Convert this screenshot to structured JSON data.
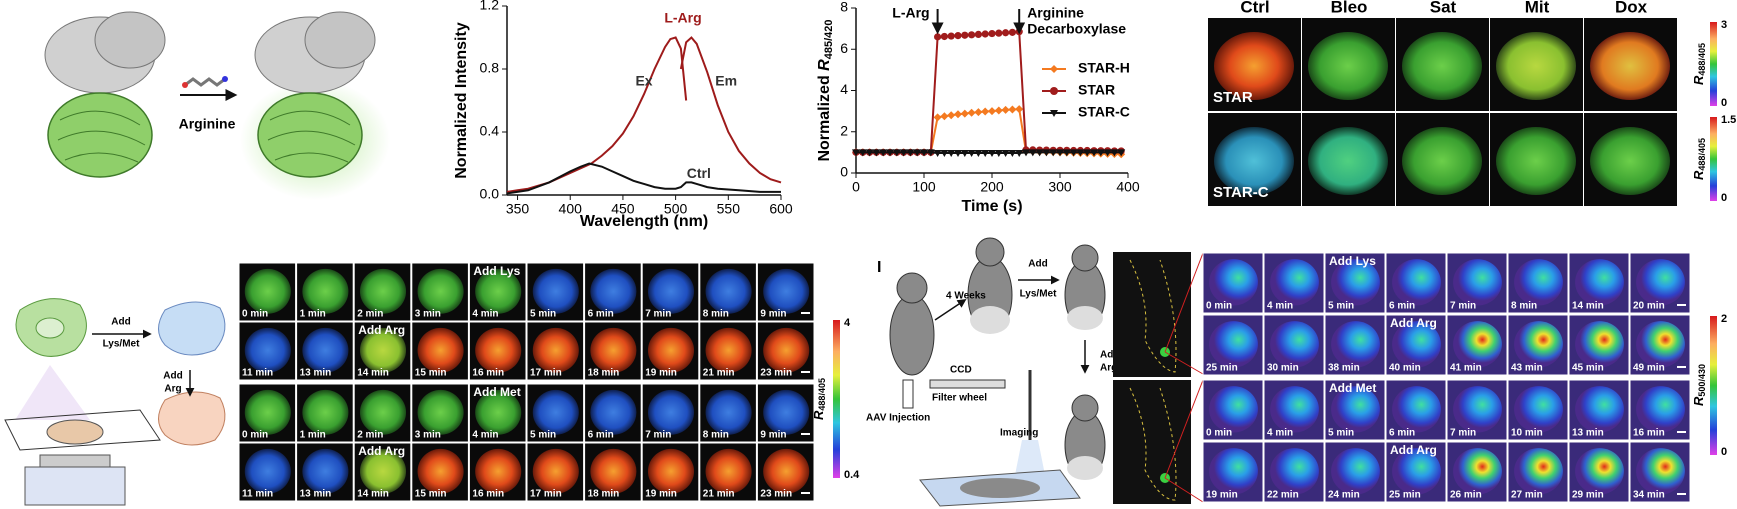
{
  "chart_data": [
    {
      "type": "line",
      "xlabel": "Wavelength (nm)",
      "ylabel": "Normalized Intensity",
      "annotation": "L-Arg",
      "xlim": [
        340,
        600
      ],
      "xticks": [
        350,
        400,
        450,
        500,
        550,
        600
      ],
      "ylim": [
        0,
        1.2
      ],
      "yticks": [
        {
          "value": 0,
          "label": "0.0"
        },
        0.4,
        0.8,
        1.2
      ],
      "series": [
        {
          "name": "Ex",
          "color": "#9e1b1b",
          "x": [
            340,
            350,
            360,
            370,
            380,
            390,
            400,
            410,
            420,
            430,
            440,
            450,
            460,
            470,
            480,
            490,
            495,
            500,
            505,
            510
          ],
          "values": [
            0.02,
            0.03,
            0.04,
            0.06,
            0.08,
            0.11,
            0.14,
            0.17,
            0.2,
            0.25,
            0.31,
            0.39,
            0.5,
            0.64,
            0.8,
            0.94,
            0.99,
            1.0,
            0.93,
            0.6
          ]
        },
        {
          "name": "Em",
          "color": "#9e1b1b",
          "x": [
            505,
            510,
            515,
            520,
            530,
            540,
            550,
            560,
            570,
            580,
            590,
            600
          ],
          "values": [
            0.8,
            0.97,
            1.0,
            0.96,
            0.78,
            0.57,
            0.4,
            0.28,
            0.2,
            0.14,
            0.1,
            0.08
          ]
        },
        {
          "name": "Ctrl",
          "color": "#111111",
          "x": [
            340,
            360,
            380,
            400,
            410,
            418,
            430,
            440,
            450,
            460,
            470,
            480,
            490,
            500,
            505,
            510,
            515,
            520,
            530,
            540,
            560,
            580,
            600
          ],
          "values": [
            0.01,
            0.03,
            0.08,
            0.15,
            0.18,
            0.2,
            0.18,
            0.15,
            0.12,
            0.09,
            0.07,
            0.05,
            0.04,
            0.04,
            0.05,
            0.08,
            0.08,
            0.07,
            0.05,
            0.04,
            0.03,
            0.02,
            0.02
          ]
        }
      ]
    },
    {
      "type": "line",
      "xlabel": "Time (s)",
      "ylabel": {
        "text": "Normalized ",
        "symbol": "R",
        "subscript": "485/420"
      },
      "legend": true,
      "annotations": [
        {
          "text": [
            "L-Arg"
          ],
          "x": 120
        },
        {
          "text": [
            "Arginine",
            "Decarboxylase"
          ],
          "x": 240
        }
      ],
      "xlim": [
        0,
        400
      ],
      "xticks": [
        0,
        100,
        200,
        300,
        400
      ],
      "ylim": [
        0,
        8
      ],
      "yticks": [
        0,
        2,
        4,
        6,
        8
      ],
      "x": [
        0,
        10,
        20,
        30,
        40,
        50,
        60,
        70,
        80,
        90,
        100,
        110,
        120,
        130,
        140,
        150,
        160,
        170,
        180,
        190,
        200,
        210,
        220,
        230,
        240,
        250,
        260,
        270,
        280,
        290,
        300,
        310,
        320,
        330,
        340,
        350,
        360,
        370,
        380,
        390
      ],
      "series": [
        {
          "name": "STAR-H",
          "color": "#f47a20",
          "marker": "diamond",
          "values": [
            1,
            1,
            1,
            1,
            1,
            1,
            1,
            1,
            1,
            1,
            1,
            1,
            2.7,
            2.75,
            2.8,
            2.85,
            2.88,
            2.92,
            2.95,
            2.98,
            3.0,
            3.03,
            3.06,
            3.08,
            3.1,
            1.05,
            1.04,
            1.03,
            1.02,
            1.01,
            1.0,
            0.99,
            0.98,
            0.97,
            0.96,
            0.95,
            0.94,
            0.93,
            0.92,
            0.91
          ]
        },
        {
          "name": "STAR",
          "color": "#a01c1c",
          "marker": "circle",
          "values": [
            1,
            1,
            1,
            1,
            1,
            1,
            1,
            1,
            1,
            1,
            1,
            1,
            6.6,
            6.62,
            6.64,
            6.66,
            6.68,
            6.7,
            6.72,
            6.74,
            6.76,
            6.78,
            6.8,
            6.82,
            6.85,
            1.12,
            1.12,
            1.11,
            1.11,
            1.1,
            1.1,
            1.1,
            1.09,
            1.09,
            1.09,
            1.08,
            1.08,
            1.08,
            1.07,
            1.07
          ]
        },
        {
          "name": "STAR-C",
          "color": "#111111",
          "marker": "triangle",
          "values": [
            1,
            1,
            1,
            1,
            1,
            1,
            1,
            1,
            1,
            1,
            1,
            1,
            0.97,
            0.97,
            0.97,
            0.97,
            0.97,
            0.97,
            0.97,
            0.97,
            0.97,
            0.97,
            0.97,
            0.97,
            0.97,
            1,
            1,
            1,
            1,
            1,
            1,
            1,
            1,
            1,
            1,
            1,
            1,
            1,
            1,
            1
          ]
        }
      ]
    }
  ],
  "protein": {
    "label": "Arginine"
  },
  "cells": {
    "columns": [
      "Ctrl",
      "Bleo",
      "Sat",
      "Mit",
      "Dox"
    ],
    "rows": [
      "STAR",
      "STAR-C"
    ],
    "colorbars": [
      {
        "max": 3,
        "min": 0
      },
      {
        "max": 1.5,
        "min": 0
      }
    ],
    "colorbar_symbol": "R",
    "colorbar_subscript": "488/405"
  },
  "time_lapse": {
    "schematic": {
      "step1": [
        "Add",
        "Lys/Met"
      ],
      "step2": [
        "Add",
        "Arg"
      ]
    },
    "colorbar": {
      "max": 4,
      "min": 0.4,
      "symbol": "R",
      "subscript": "488/405"
    },
    "rows": [
      [
        {
          "t": "0 min"
        },
        {
          "t": "1 min"
        },
        {
          "t": "2 min"
        },
        {
          "t": "3 min"
        },
        {
          "t": "4 min",
          "note": "Add Lys"
        },
        {
          "t": "5 min"
        },
        {
          "t": "6 min"
        },
        {
          "t": "7 min"
        },
        {
          "t": "8 min"
        },
        {
          "t": "9 min"
        }
      ],
      [
        {
          "t": "11 min"
        },
        {
          "t": "13 min"
        },
        {
          "t": "14 min",
          "note": "Add Arg"
        },
        {
          "t": "15 min"
        },
        {
          "t": "16 min"
        },
        {
          "t": "17 min"
        },
        {
          "t": "18 min"
        },
        {
          "t": "19 min"
        },
        {
          "t": "21 min"
        },
        {
          "t": "23 min"
        }
      ],
      [
        {
          "t": "0 min"
        },
        {
          "t": "1 min"
        },
        {
          "t": "2 min"
        },
        {
          "t": "3 min"
        },
        {
          "t": "4 min",
          "note": "Add Met"
        },
        {
          "t": "5 min"
        },
        {
          "t": "6 min"
        },
        {
          "t": "7 min"
        },
        {
          "t": "8 min"
        },
        {
          "t": "9 min"
        }
      ],
      [
        {
          "t": "11 min"
        },
        {
          "t": "13 min"
        },
        {
          "t": "14 min",
          "note": "Add Arg"
        },
        {
          "t": "15 min"
        },
        {
          "t": "16 min"
        },
        {
          "t": "17 min"
        },
        {
          "t": "18 min"
        },
        {
          "t": "19 min"
        },
        {
          "t": "21 min"
        },
        {
          "t": "23 min"
        }
      ]
    ]
  },
  "mouse": {
    "letter": "I",
    "schematic": {
      "weeks": "4 Weeks",
      "step1": [
        "Add",
        "Lys/Met"
      ],
      "step2": [
        "Add",
        "Arg"
      ],
      "injection": "AAV Injection",
      "ccd": "CCD",
      "filter": "Filter wheel",
      "imaging": "Imaging"
    },
    "colorbar": {
      "max": 2,
      "min": 0,
      "symbol": "R",
      "subscript": "500/430"
    },
    "rows": [
      [
        {
          "t": "0 min"
        },
        {
          "t": "4 min"
        },
        {
          "t": "5 min",
          "note": "Add Lys"
        },
        {
          "t": "6 min"
        },
        {
          "t": "7 min"
        },
        {
          "t": "8 min"
        },
        {
          "t": "14 min"
        },
        {
          "t": "20 min"
        }
      ],
      [
        {
          "t": "25 min"
        },
        {
          "t": "30 min"
        },
        {
          "t": "38 min"
        },
        {
          "t": "40 min",
          "note": "Add Arg"
        },
        {
          "t": "41 min"
        },
        {
          "t": "43 min"
        },
        {
          "t": "45 min"
        },
        {
          "t": "49 min"
        }
      ],
      [
        {
          "t": "0 min"
        },
        {
          "t": "4 min"
        },
        {
          "t": "5 min",
          "note": "Add Met"
        },
        {
          "t": "6 min"
        },
        {
          "t": "7 min"
        },
        {
          "t": "10 min"
        },
        {
          "t": "13 min"
        },
        {
          "t": "16 min"
        }
      ],
      [
        {
          "t": "19 min"
        },
        {
          "t": "22 min"
        },
        {
          "t": "24 min"
        },
        {
          "t": "25 min",
          "note": "Add Arg"
        },
        {
          "t": "26 min"
        },
        {
          "t": "27 min"
        },
        {
          "t": "29 min"
        },
        {
          "t": "34 min"
        }
      ]
    ]
  }
}
